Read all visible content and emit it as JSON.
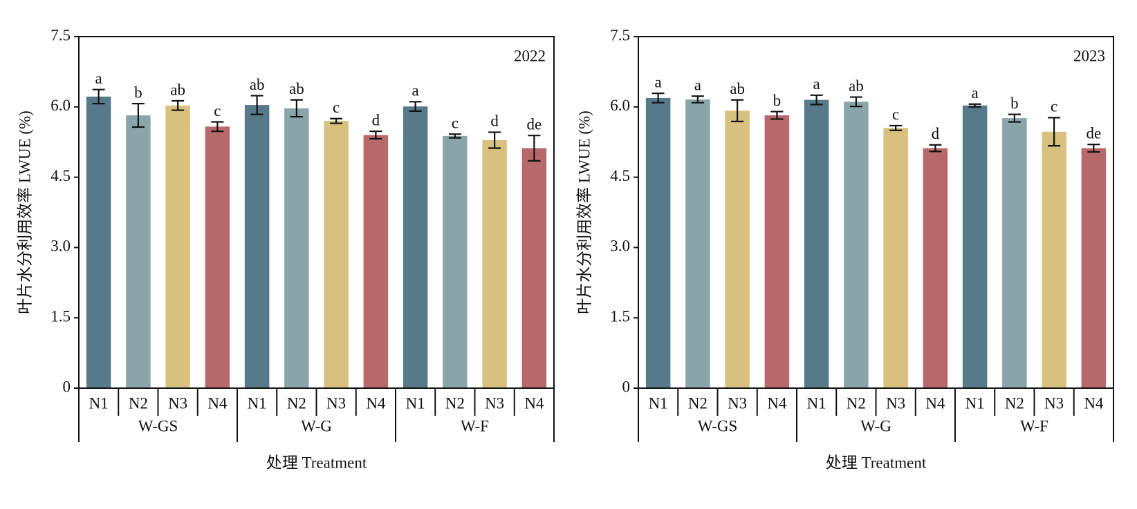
{
  "chart_data": [
    {
      "type": "bar",
      "annotation": "2022",
      "ylabel": "叶片水分利用效率 LWUE (%)",
      "xlabel": "处理 Treatment",
      "categories": [
        "N1",
        "N2",
        "N3",
        "N4"
      ],
      "colors": [
        "#577a8b",
        "#8aa5a9",
        "#d8c17e",
        "#b7686b"
      ],
      "groups": [
        {
          "name": "W-GS",
          "values": [
            6.22,
            5.82,
            6.03,
            5.58
          ],
          "errors": [
            0.15,
            0.25,
            0.1,
            0.1
          ],
          "letters": [
            "a",
            "b",
            "ab",
            "c"
          ]
        },
        {
          "name": "W-G",
          "values": [
            6.04,
            5.97,
            5.7,
            5.4
          ],
          "errors": [
            0.2,
            0.18,
            0.05,
            0.08
          ],
          "letters": [
            "ab",
            "ab",
            "c",
            "d"
          ]
        },
        {
          "name": "W-F",
          "values": [
            6.01,
            5.38,
            5.29,
            5.12
          ],
          "errors": [
            0.1,
            0.04,
            0.17,
            0.27
          ],
          "letters": [
            "a",
            "c",
            "d",
            "de"
          ]
        }
      ],
      "ylim": [
        0,
        7.5
      ],
      "yticks": [
        0,
        1.5,
        {
          "value": 3,
          "label": "3.0"
        },
        4.5,
        {
          "value": 6,
          "label": "6.0"
        },
        7.5
      ]
    },
    {
      "type": "bar",
      "annotation": "2023",
      "ylabel": "叶片水分利用效率 LWUE (%)",
      "xlabel": "处理 Treatment",
      "categories": [
        "N1",
        "N2",
        "N3",
        "N4"
      ],
      "colors": [
        "#577a8b",
        "#8aa5a9",
        "#d8c17e",
        "#b7686b"
      ],
      "groups": [
        {
          "name": "W-GS",
          "values": [
            6.19,
            6.16,
            5.92,
            5.82
          ],
          "errors": [
            0.1,
            0.07,
            0.23,
            0.08
          ],
          "letters": [
            "a",
            "a",
            "ab",
            "b"
          ]
        },
        {
          "name": "W-G",
          "values": [
            6.15,
            6.11,
            5.55,
            5.12
          ],
          "errors": [
            0.1,
            0.1,
            0.05,
            0.07
          ],
          "letters": [
            "a",
            "ab",
            "c",
            "d"
          ]
        },
        {
          "name": "W-F",
          "values": [
            6.03,
            5.76,
            5.47,
            5.12
          ],
          "errors": [
            0.03,
            0.08,
            0.3,
            0.08
          ],
          "letters": [
            "a",
            "b",
            "c",
            "de"
          ]
        }
      ],
      "ylim": [
        0,
        7.5
      ],
      "yticks": [
        0,
        1.5,
        {
          "value": 3,
          "label": "3.0"
        },
        4.5,
        {
          "value": 6,
          "label": "6.0"
        },
        7.5
      ]
    }
  ]
}
